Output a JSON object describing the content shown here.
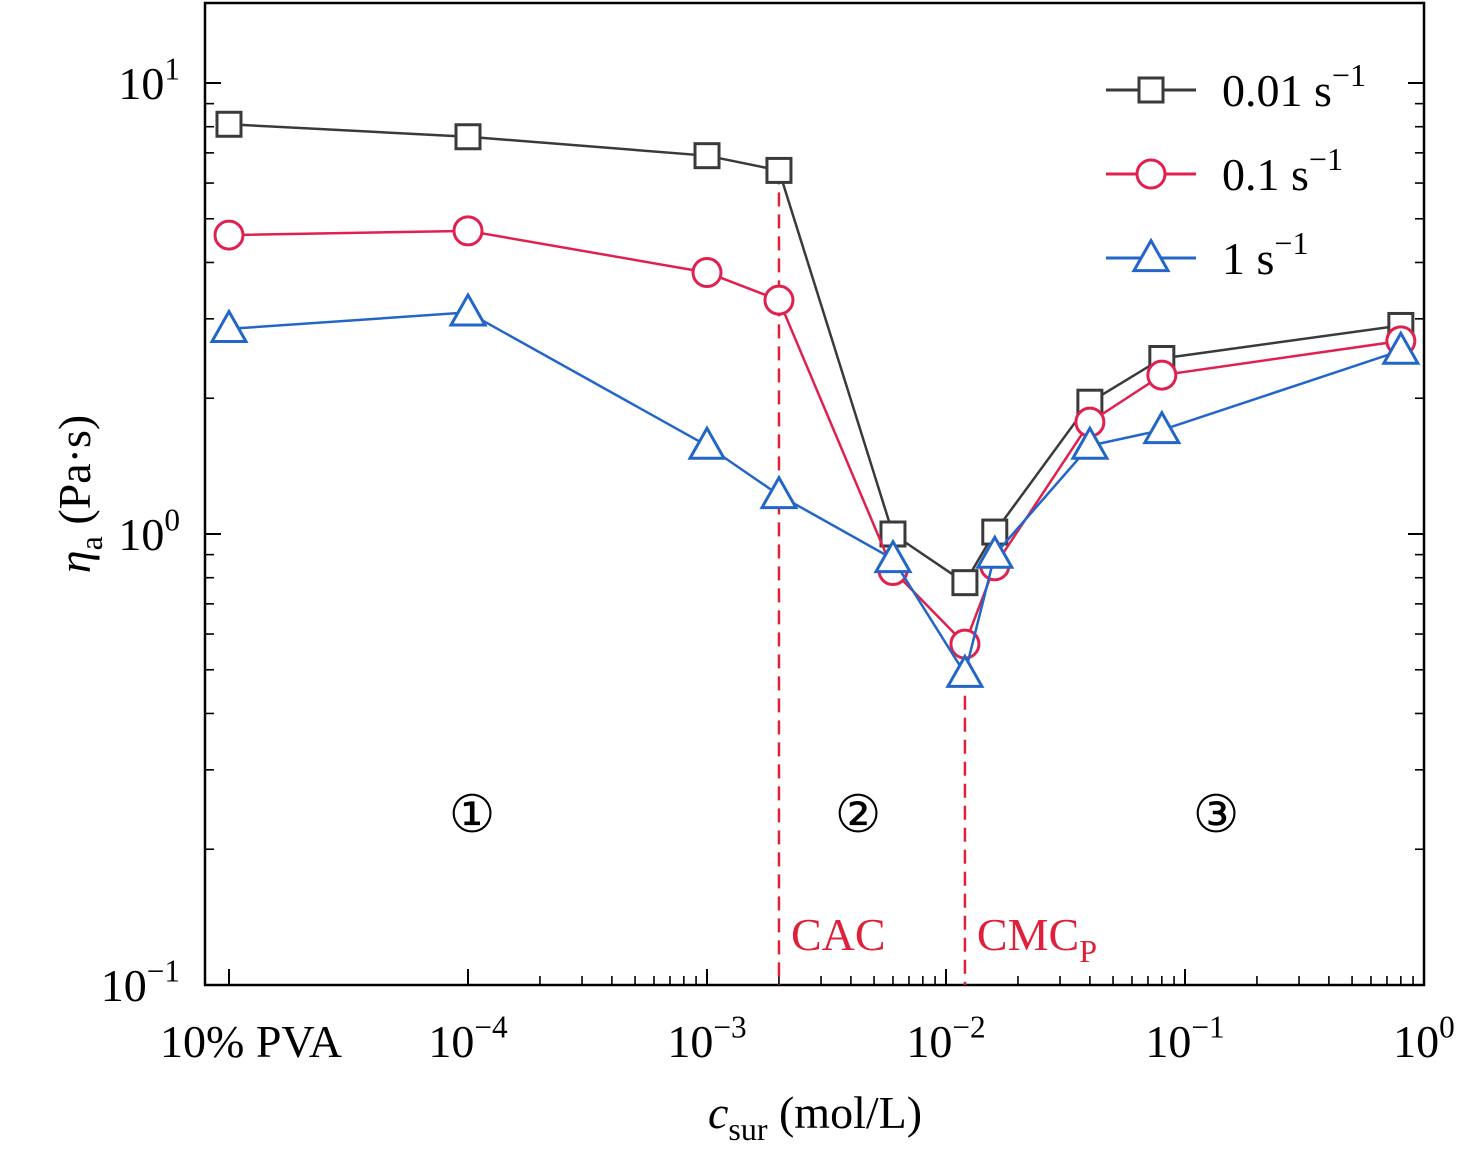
{
  "colors": {
    "series_0_01": "#3a3a3a",
    "series_0_1": "#e0204f",
    "series_1": "#2266c8",
    "threshold": "#e0203a",
    "axis": "#000000"
  },
  "axes": {
    "x_title_symbol": "c",
    "x_title_sub": "sur",
    "x_title_unit": " (mol/L)",
    "y_title_symbol": "η",
    "y_title_sub": "a",
    "y_title_unit": " (Pa·s)"
  },
  "region_labels": [
    "①",
    "②",
    "③"
  ],
  "chart_data": {
    "type": "line",
    "x_scale": "log",
    "y_scale": "log",
    "xlim": [
      5e-06,
      1
    ],
    "ylim": [
      0.1,
      15
    ],
    "x_ticks": [
      {
        "value": 1e-05,
        "label": "10% PVA"
      },
      {
        "value": 0.0001,
        "base": "10",
        "exp": "−4"
      },
      {
        "value": 0.001,
        "base": "10",
        "exp": "−3"
      },
      {
        "value": 0.01,
        "base": "10",
        "exp": "−2"
      },
      {
        "value": 0.1,
        "base": "10",
        "exp": "−1"
      },
      {
        "value": 1,
        "base": "10",
        "exp": "0"
      }
    ],
    "y_ticks": [
      {
        "value": 0.1,
        "base": "10",
        "exp": "−1"
      },
      {
        "value": 1,
        "base": "10",
        "exp": "0"
      },
      {
        "value": 10,
        "base": "10",
        "exp": "1"
      }
    ],
    "x": [
      1e-05,
      0.0001,
      0.001,
      0.002,
      0.006,
      0.012,
      0.016,
      0.04,
      0.08,
      0.8
    ],
    "series": [
      {
        "name": "0.01 s",
        "name_exp": "−1",
        "marker": "square",
        "color_key": "series_0_01",
        "values": [
          8.1,
          7.6,
          6.9,
          6.4,
          1.0,
          0.78,
          1.01,
          1.96,
          2.45,
          2.9
        ]
      },
      {
        "name": "0.1 s",
        "name_exp": "−1",
        "marker": "circle",
        "color_key": "series_0_1",
        "values": [
          4.6,
          4.7,
          3.8,
          3.3,
          0.83,
          0.57,
          0.85,
          1.77,
          2.25,
          2.68
        ]
      },
      {
        "name": "1 s",
        "name_exp": "−1",
        "marker": "triangle",
        "color_key": "series_1",
        "values": [
          2.85,
          3.1,
          1.57,
          1.22,
          0.88,
          0.49,
          0.9,
          1.57,
          1.7,
          2.55
        ]
      }
    ],
    "thresholds": [
      {
        "x": 0.002,
        "label": "CAC",
        "sub": "",
        "from_value": 6.4
      },
      {
        "x": 0.012,
        "label": "CMC",
        "sub": "P",
        "from_value": 0.49
      }
    ],
    "legend_position": "top-right",
    "grid": false
  }
}
